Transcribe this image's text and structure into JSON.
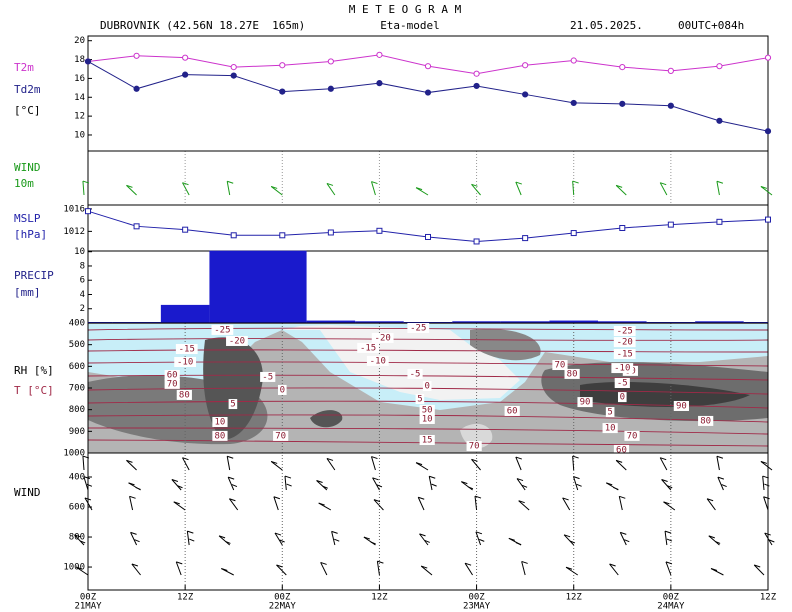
{
  "header": {
    "title": "M E T E O G R A M",
    "station": "DUBROVNIK (42.56N 18.27E  165m)",
    "model": "Eta-model",
    "date": "21.05.2025.",
    "run": "00UTC+084h"
  },
  "chart_data": [
    {
      "type": "line",
      "ylabel": "[°C]",
      "x": [
        0,
        6,
        12,
        18,
        24,
        30,
        36,
        42,
        48,
        54,
        60,
        66,
        72,
        78,
        84
      ],
      "xlim": [
        0,
        84
      ],
      "ylim": [
        8.3,
        20.5
      ],
      "yticks": [
        10,
        12,
        14,
        16,
        18,
        20
      ],
      "series": [
        {
          "name": "T2m",
          "color": "#cc33cc",
          "marker": "open-circle",
          "values": [
            17.8,
            18.4,
            18.2,
            17.2,
            17.4,
            17.8,
            18.5,
            17.3,
            16.5,
            17.4,
            17.9,
            17.2,
            16.8,
            17.3,
            18.2
          ]
        },
        {
          "name": "Td2m",
          "color": "#22228a",
          "marker": "filled-circle",
          "values": [
            17.8,
            14.9,
            16.4,
            16.3,
            14.6,
            14.9,
            15.5,
            14.5,
            15.2,
            14.3,
            13.4,
            13.3,
            13.1,
            11.5,
            10.4
          ]
        }
      ]
    },
    {
      "type": "barb",
      "title": "WIND",
      "subtitle": "10m",
      "color": "#1a9a1a"
    },
    {
      "type": "line",
      "ylabel": "[hPa]",
      "x": [
        0,
        6,
        12,
        18,
        24,
        30,
        36,
        42,
        48,
        54,
        60,
        66,
        72,
        78,
        84
      ],
      "xlim": [
        0,
        84
      ],
      "ylim": [
        1008.5,
        1016.7
      ],
      "yticks": [
        1012,
        1016
      ],
      "series": [
        {
          "name": "MSLP",
          "color": "#2222aa",
          "marker": "open-square",
          "values": [
            1015.6,
            1012.9,
            1012.3,
            1011.3,
            1011.3,
            1011.8,
            1012.1,
            1011.0,
            1010.2,
            1010.8,
            1011.7,
            1012.6,
            1013.2,
            1013.7,
            1014.1
          ]
        }
      ]
    },
    {
      "type": "bar",
      "title": "PRECIP",
      "ylabel": "[mm]",
      "color": "#1a1acc",
      "x": [
        0,
        6,
        12,
        18,
        24,
        30,
        36,
        42,
        48,
        54,
        60,
        66,
        72,
        78,
        84
      ],
      "xlim": [
        0,
        84
      ],
      "values": [
        0,
        0,
        2.4,
        10,
        10,
        0.2,
        0.1,
        0,
        0.1,
        0.1,
        0.2,
        0.1,
        0,
        0.1,
        0
      ],
      "ylim": [
        0,
        10.1
      ],
      "yticks": [
        2,
        4,
        6,
        8,
        10
      ]
    },
    {
      "type": "contour",
      "ylabel": "RH [%]",
      "y2label": "T [°C]",
      "xlim": [
        0,
        84
      ],
      "ylim": [
        400,
        1000
      ],
      "yticks": [
        400,
        500,
        600,
        700,
        800,
        900,
        1000
      ],
      "annotations": [
        {
          "text": "-25",
          "x": 16.6,
          "p": 432
        },
        {
          "text": "-20",
          "x": 18.4,
          "p": 483
        },
        {
          "text": "-15",
          "x": 12.2,
          "p": 520
        },
        {
          "text": "-10",
          "x": 12,
          "p": 580
        },
        {
          "text": "60",
          "x": 10.4,
          "p": 640
        },
        {
          "text": "70",
          "x": 10.4,
          "p": 681
        },
        {
          "text": "80",
          "x": 11.9,
          "p": 732
        },
        {
          "text": "-5",
          "x": 22.2,
          "p": 649
        },
        {
          "text": "0",
          "x": 24,
          "p": 709
        },
        {
          "text": "5",
          "x": 17.9,
          "p": 774
        },
        {
          "text": "10",
          "x": 16.3,
          "p": 857
        },
        {
          "text": "80",
          "x": 16.3,
          "p": 921
        },
        {
          "text": "70",
          "x": 23.8,
          "p": 921
        },
        {
          "text": "-25",
          "x": 40.8,
          "p": 423
        },
        {
          "text": "-20",
          "x": 36.4,
          "p": 469
        },
        {
          "text": "-15",
          "x": 34.6,
          "p": 515
        },
        {
          "text": "-10",
          "x": 35.8,
          "p": 575
        },
        {
          "text": "-5",
          "x": 40.4,
          "p": 635
        },
        {
          "text": "0",
          "x": 41.9,
          "p": 691
        },
        {
          "text": "5",
          "x": 41,
          "p": 751
        },
        {
          "text": "50",
          "x": 41.9,
          "p": 801
        },
        {
          "text": "10",
          "x": 41.9,
          "p": 843
        },
        {
          "text": "15",
          "x": 41.9,
          "p": 940
        },
        {
          "text": "60",
          "x": 52.4,
          "p": 806
        },
        {
          "text": "70",
          "x": 47.7,
          "p": 968
        },
        {
          "text": "70",
          "x": 58.3,
          "p": 594
        },
        {
          "text": "80",
          "x": 59.8,
          "p": 635
        },
        {
          "text": "60",
          "x": 67,
          "p": 621
        },
        {
          "text": "-25",
          "x": 66.3,
          "p": 437
        },
        {
          "text": "-20",
          "x": 66.3,
          "p": 488
        },
        {
          "text": "-15",
          "x": 66.3,
          "p": 543
        },
        {
          "text": "-10",
          "x": 66,
          "p": 608
        },
        {
          "text": "-5",
          "x": 66,
          "p": 677
        },
        {
          "text": "0",
          "x": 66,
          "p": 742
        },
        {
          "text": "90",
          "x": 61.4,
          "p": 765
        },
        {
          "text": "5",
          "x": 64.5,
          "p": 811
        },
        {
          "text": "10",
          "x": 64.5,
          "p": 885
        },
        {
          "text": "90",
          "x": 73.3,
          "p": 783
        },
        {
          "text": "80",
          "x": 76.3,
          "p": 852
        },
        {
          "text": "70",
          "x": 67.2,
          "p": 921
        },
        {
          "text": "60",
          "x": 65.9,
          "p": 986
        }
      ]
    },
    {
      "type": "barb",
      "title": "WIND",
      "color": "#000000",
      "xlim": [
        0,
        84
      ],
      "ylim": [
        240,
        1153
      ],
      "yticks": [
        400,
        600,
        800,
        1000
      ],
      "xticks": [
        {
          "value": 0,
          "label": "00Z"
        },
        {
          "value": 12,
          "label": "12Z"
        },
        {
          "value": 24,
          "label": "00Z"
        },
        {
          "value": 36,
          "label": "12Z"
        },
        {
          "value": 48,
          "label": "00Z"
        },
        {
          "value": 60,
          "label": "12Z"
        },
        {
          "value": 72,
          "label": "00Z"
        },
        {
          "value": 84,
          "label": "12Z"
        }
      ],
      "date_ticks": [
        {
          "value": 0,
          "label": "21MAY"
        },
        {
          "value": 24,
          "label": "22MAY"
        },
        {
          "value": 48,
          "label": "23MAY"
        },
        {
          "value": 72,
          "label": "24MAY"
        }
      ]
    }
  ]
}
